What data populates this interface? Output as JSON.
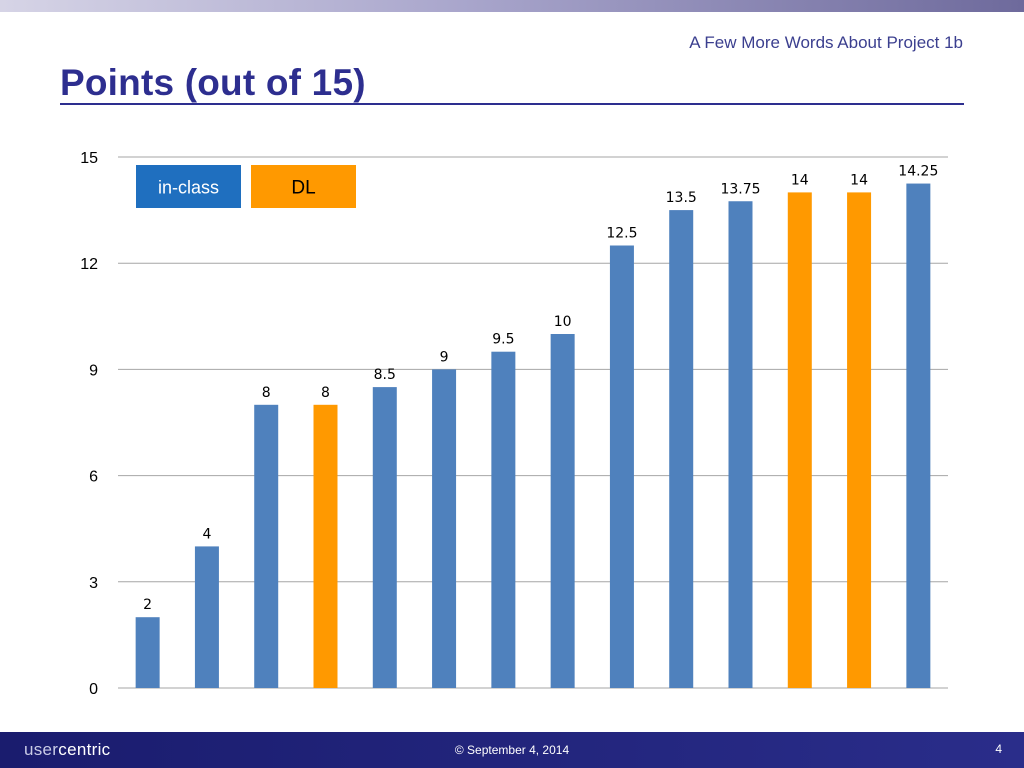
{
  "slide": {
    "subtitle": "A Few More Words About Project 1b",
    "title": "Points (out of 15)"
  },
  "footer": {
    "logo_prefix": "user",
    "logo_suffix": "centric",
    "date": "©  September 4, 2014",
    "page_number": "4"
  },
  "colors": {
    "in_class": "#4f81bd",
    "dl": "#ff9900",
    "grid": "#a6a6a6",
    "title": "#2d2e8f"
  },
  "chart_data": {
    "type": "bar",
    "title": "",
    "xlabel": "",
    "ylabel": "",
    "ylim": [
      0,
      15
    ],
    "yticks": [
      0,
      3,
      6,
      9,
      12,
      15
    ],
    "grid": true,
    "legend_position": "top-left",
    "legend": [
      {
        "label": "in-class",
        "color": "#1f6fbf"
      },
      {
        "label": "DL",
        "color": "#ff9900"
      }
    ],
    "bars": [
      {
        "value": 2,
        "label": "2",
        "group": "in-class"
      },
      {
        "value": 4,
        "label": "4",
        "group": "in-class"
      },
      {
        "value": 8,
        "label": "8",
        "group": "in-class"
      },
      {
        "value": 8,
        "label": "8",
        "group": "DL"
      },
      {
        "value": 8.5,
        "label": "8.5",
        "group": "in-class"
      },
      {
        "value": 9,
        "label": "9",
        "group": "in-class"
      },
      {
        "value": 9.5,
        "label": "9.5",
        "group": "in-class"
      },
      {
        "value": 10,
        "label": "10",
        "group": "in-class"
      },
      {
        "value": 12.5,
        "label": "12.5",
        "group": "in-class"
      },
      {
        "value": 13.5,
        "label": "13.5",
        "group": "in-class"
      },
      {
        "value": 13.75,
        "label": "13.75",
        "group": "in-class"
      },
      {
        "value": 14,
        "label": "14",
        "group": "DL"
      },
      {
        "value": 14,
        "label": "14",
        "group": "DL"
      },
      {
        "value": 14.25,
        "label": "14.25",
        "group": "in-class"
      }
    ]
  }
}
